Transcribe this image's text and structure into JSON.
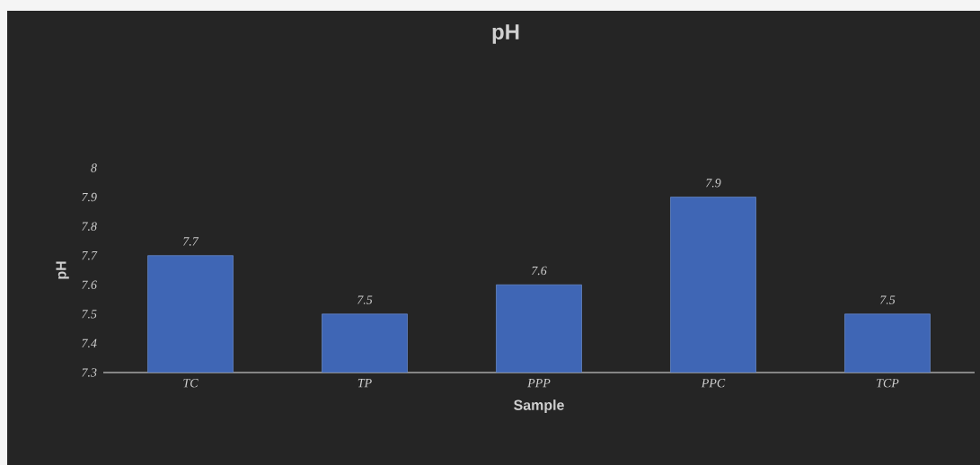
{
  "chart_data": {
    "type": "bar",
    "title": "pH",
    "xlabel": "Sample",
    "ylabel": "pH",
    "categories": [
      "TC",
      "TP",
      "PPP",
      "PPC",
      "TCP"
    ],
    "values": [
      7.7,
      7.5,
      7.6,
      7.9,
      7.5
    ],
    "color": "#3f66b5",
    "ylim": [
      7.3,
      8
    ],
    "yticks": [
      7.3,
      7.4,
      7.5,
      7.6,
      7.7,
      7.8,
      7.9,
      8
    ],
    "data_labels": true
  }
}
